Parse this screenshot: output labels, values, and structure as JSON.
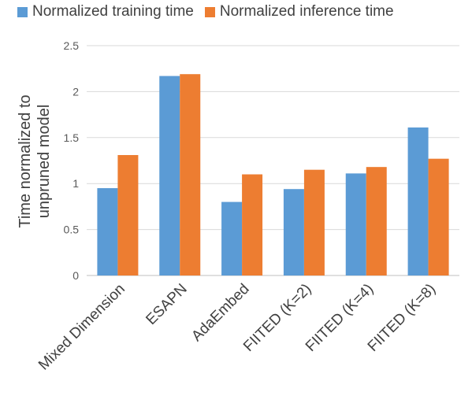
{
  "chart_data": {
    "type": "bar",
    "categories": [
      "Mixed Dimension",
      "ESAPN",
      "AdaEmbed",
      "FIITED (K=2)",
      "FIITED (K=4)",
      "FIITED (K=8)"
    ],
    "series": [
      {
        "name": "Normalized training time",
        "color": "#5B9BD5",
        "values": [
          0.95,
          2.17,
          0.8,
          0.94,
          1.11,
          1.61
        ]
      },
      {
        "name": "Normalized inference time",
        "color": "#ED7D31",
        "values": [
          1.31,
          2.19,
          1.1,
          1.15,
          1.18,
          1.27
        ]
      }
    ],
    "title": "",
    "xlabel": "",
    "ylabel": "Time normalized to unpruned model",
    "ylabel_lines": [
      "Time normalized to",
      "unpruned model"
    ],
    "ylim": [
      0,
      2.5
    ],
    "yticks": [
      "0",
      "0.5",
      "1",
      "1.5",
      "2",
      "2.5"
    ],
    "grid": true,
    "legend_position": "top"
  }
}
